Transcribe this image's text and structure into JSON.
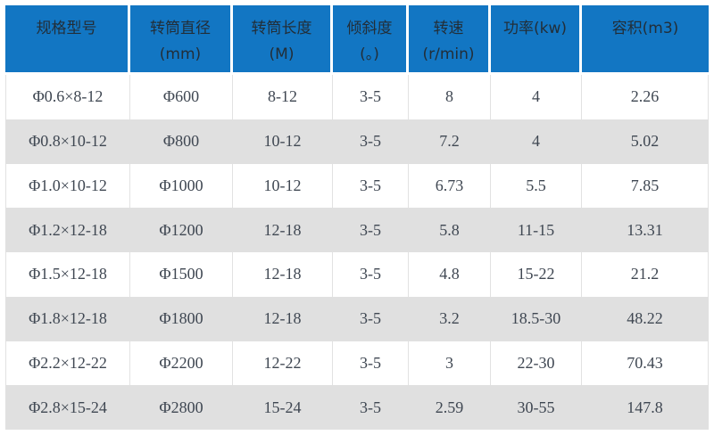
{
  "colors": {
    "header_bg": "#1276c3",
    "header_text": "#222e38",
    "body_text": "#3f4752",
    "row_alt_bg": "#e0e0e0",
    "divider": "#e2e2e2",
    "page_bg": "#ffffff"
  },
  "chart_data": {
    "type": "table",
    "columns": [
      {
        "label": "规格型号",
        "sublabel": ""
      },
      {
        "label": "转筒直径",
        "sublabel": "(mm)"
      },
      {
        "label": "转筒长度",
        "sublabel": "(M)"
      },
      {
        "label": "倾斜度",
        "sublabel": "(。)"
      },
      {
        "label": "转速",
        "sublabel": "(r/min)"
      },
      {
        "label": "功率(kw)",
        "sublabel": ""
      },
      {
        "label": "容积(m3)",
        "sublabel": ""
      }
    ],
    "rows": [
      [
        "Φ0.6×8-12",
        "Φ600",
        "8-12",
        "3-5",
        "8",
        "4",
        "2.26"
      ],
      [
        "Φ0.8×10-12",
        "Φ800",
        "10-12",
        "3-5",
        "7.2",
        "4",
        "5.02"
      ],
      [
        "Φ1.0×10-12",
        "Φ1000",
        "10-12",
        "3-5",
        "6.73",
        "5.5",
        "7.85"
      ],
      [
        "Φ1.2×12-18",
        "Φ1200",
        "12-18",
        "3-5",
        "5.8",
        "11-15",
        "13.31"
      ],
      [
        "Φ1.5×12-18",
        "Φ1500",
        "12-18",
        "3-5",
        "4.8",
        "15-22",
        "21.2"
      ],
      [
        "Φ1.8×12-18",
        "Φ1800",
        "12-18",
        "3-5",
        "3.2",
        "18.5-30",
        "48.22"
      ],
      [
        "Φ2.2×12-22",
        "Φ2200",
        "12-22",
        "3-5",
        "3",
        "22-30",
        "70.43"
      ],
      [
        "Φ2.8×15-24",
        "Φ2800",
        "15-24",
        "3-5",
        "2.59",
        "30-55",
        "147.8"
      ]
    ]
  }
}
